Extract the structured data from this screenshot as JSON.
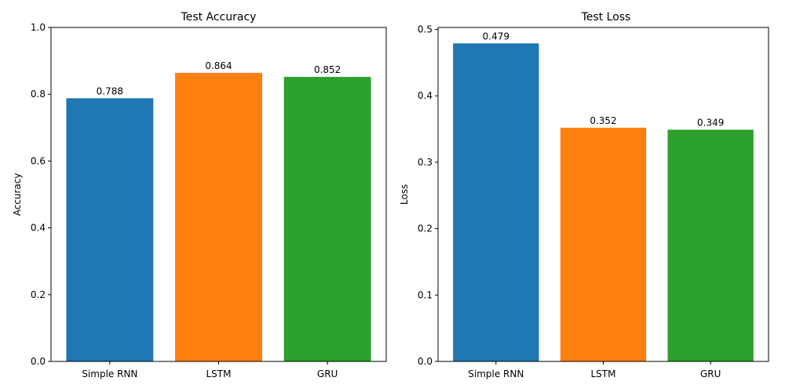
{
  "chart_data": [
    {
      "type": "bar",
      "title": "Test Accuracy",
      "xlabel": "",
      "ylabel": "Accuracy",
      "categories": [
        "Simple RNN",
        "LSTM",
        "GRU"
      ],
      "values": [
        0.788,
        0.864,
        0.852
      ],
      "value_labels": [
        "0.788",
        "0.864",
        "0.852"
      ],
      "colors": [
        "#1f77b4",
        "#ff7f0e",
        "#2ca02c"
      ],
      "ylim": [
        0,
        1.0
      ],
      "yticks": [
        0.0,
        0.2,
        0.4,
        0.6,
        0.8,
        1.0
      ],
      "ytick_labels": [
        "0.0",
        "0.2",
        "0.4",
        "0.6",
        "0.8",
        "1.0"
      ],
      "grid": false,
      "legend": "none"
    },
    {
      "type": "bar",
      "title": "Test Loss",
      "xlabel": "",
      "ylabel": "Loss",
      "categories": [
        "Simple RNN",
        "LSTM",
        "GRU"
      ],
      "values": [
        0.479,
        0.352,
        0.349
      ],
      "value_labels": [
        "0.479",
        "0.352",
        "0.349"
      ],
      "colors": [
        "#1f77b4",
        "#ff7f0e",
        "#2ca02c"
      ],
      "ylim": [
        0,
        0.503
      ],
      "yticks": [
        0.0,
        0.1,
        0.2,
        0.3,
        0.4,
        0.5
      ],
      "ytick_labels": [
        "0.0",
        "0.1",
        "0.2",
        "0.3",
        "0.4",
        "0.5"
      ],
      "grid": false,
      "legend": "none"
    }
  ]
}
